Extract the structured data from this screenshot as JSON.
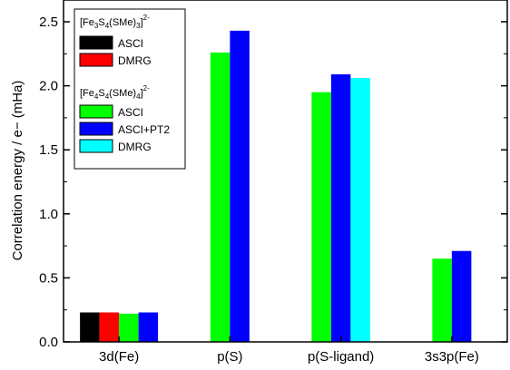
{
  "chart_data": {
    "type": "bar",
    "ylabel": "Correlation energy / e− (mHa)",
    "ylim": [
      0.0,
      2.67
    ],
    "yticks": [
      "0.0",
      "0.5",
      "1.0",
      "1.5",
      "2.0",
      "2.5"
    ],
    "ytick_values": [
      0.0,
      0.5,
      1.0,
      1.5,
      2.0,
      2.5
    ],
    "categories": [
      "3d(Fe)",
      "p(S)",
      "p(S-ligand)",
      "3s3p(Fe)"
    ],
    "legend_position": "top-left",
    "groups": [
      {
        "title_parts": {
          "a": "[Fe",
          "b": "3",
          "c": "S",
          "d": "4",
          "e": "(SMe)",
          "f": "3",
          "g": "]",
          "h": "2-"
        },
        "series": [
          {
            "name": "ASCI",
            "color": "#000000",
            "values": [
              0.23,
              null,
              null,
              null
            ]
          },
          {
            "name": "DMRG",
            "color": "#ff0000",
            "values": [
              0.23,
              null,
              null,
              null
            ]
          }
        ]
      },
      {
        "title_parts": {
          "a": "[Fe",
          "b": "4",
          "c": "S",
          "d": "4",
          "e": "(SMe)",
          "f": "4",
          "g": "]",
          "h": "2-"
        },
        "series": [
          {
            "name": "ASCI",
            "color": "#00ff00",
            "values": [
              0.22,
              2.26,
              1.95,
              0.65
            ]
          },
          {
            "name": "ASCI+PT2",
            "color": "#0000ff",
            "values": [
              0.23,
              2.43,
              2.09,
              0.71
            ]
          },
          {
            "name": "DMRG",
            "color": "#00ffff",
            "values": [
              null,
              null,
              2.06,
              null
            ]
          }
        ]
      }
    ]
  }
}
